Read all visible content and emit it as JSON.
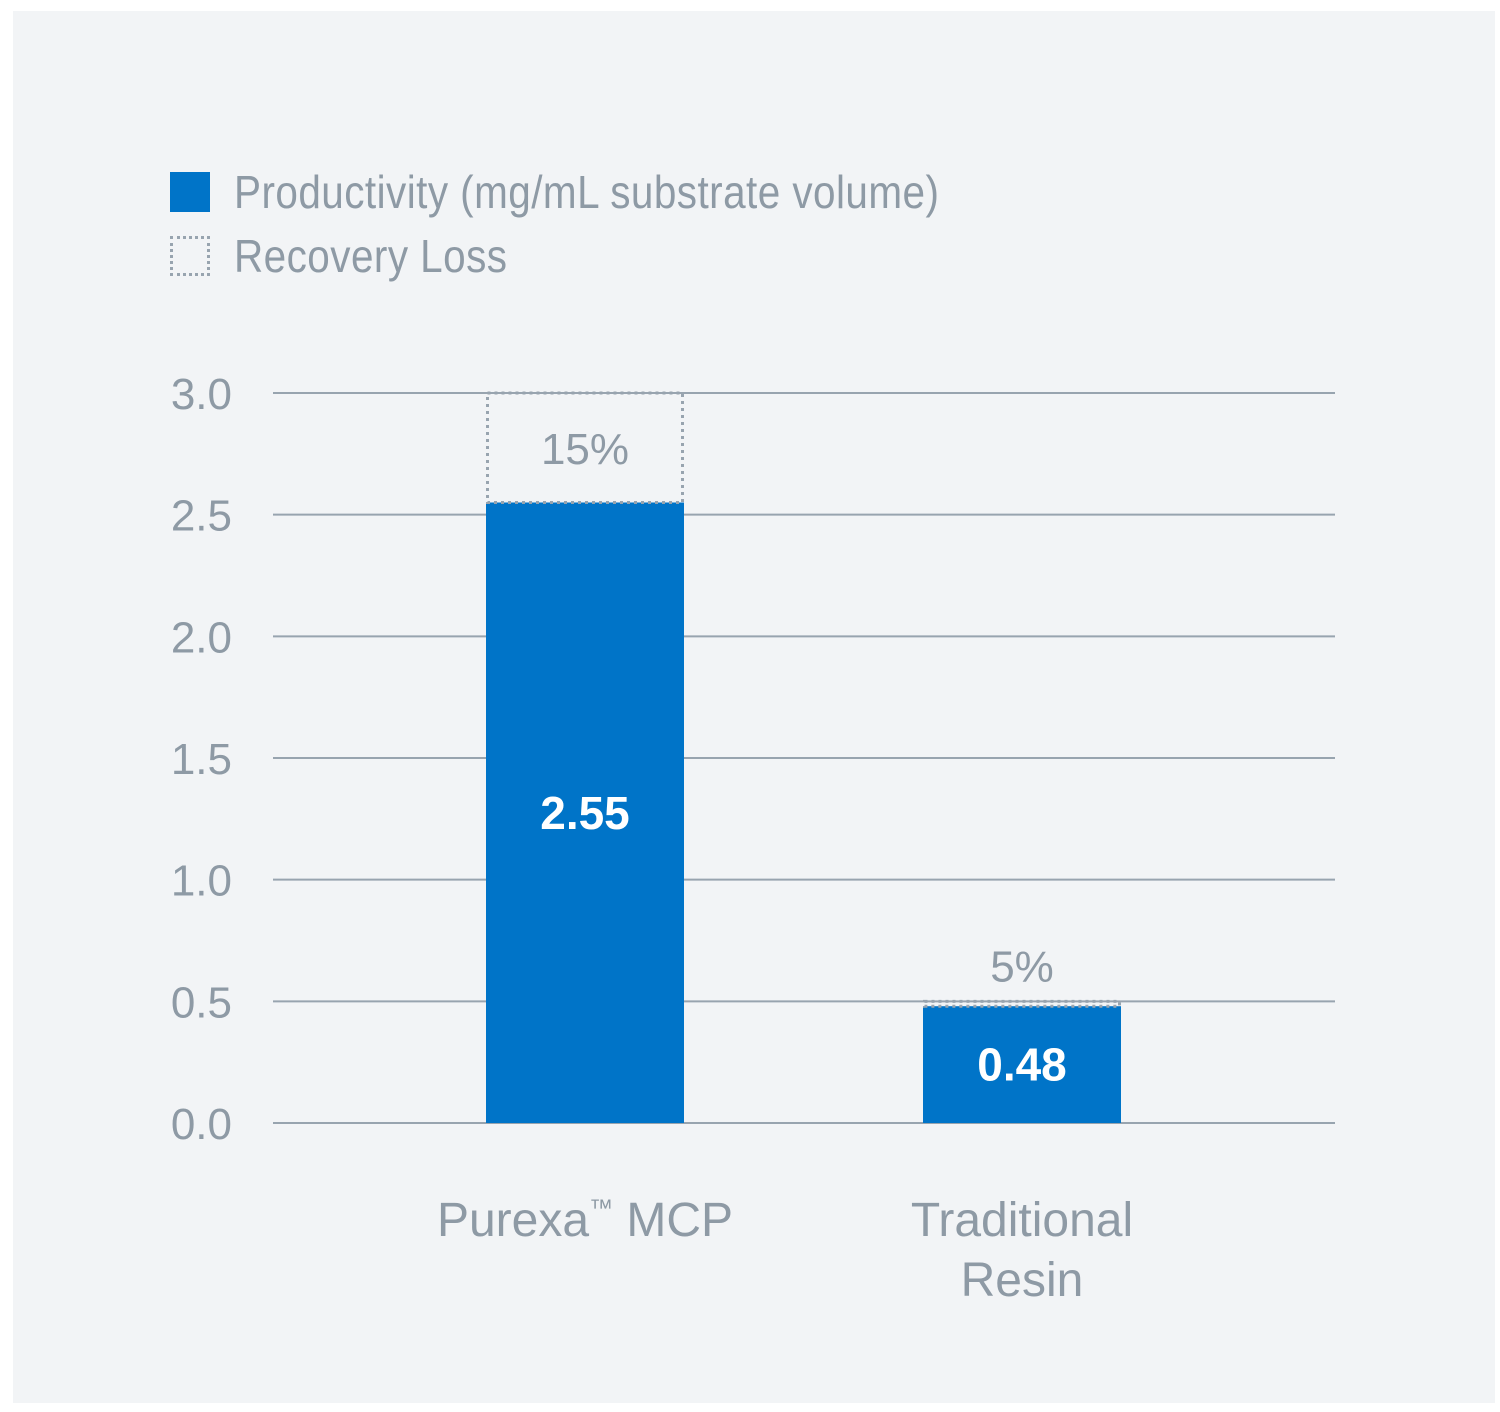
{
  "legend": {
    "items": [
      {
        "label": "Productivity (mg/mL substrate volume)",
        "style": "solid",
        "color": "#0074c8"
      },
      {
        "label": "Recovery Loss",
        "style": "dotted",
        "color": "#98a4af"
      }
    ]
  },
  "chart_data": {
    "type": "bar",
    "stacked": true,
    "ylim": [
      0,
      3.0
    ],
    "yticks": [
      "0.0",
      "0.5",
      "1.0",
      "1.5",
      "2.0",
      "2.5",
      "3.0"
    ],
    "grid": true,
    "legend_position": "top-left",
    "categories": [
      {
        "lines": [
          "Purexa",
          "MCP"
        ],
        "superscript": "™"
      },
      {
        "lines": [
          "Traditional",
          "Resin"
        ]
      }
    ],
    "series": [
      {
        "name": "Productivity (mg/mL substrate volume)",
        "values": [
          2.55,
          0.48
        ],
        "labels": [
          "2.55",
          "0.48"
        ],
        "color": "#0074c8"
      },
      {
        "name": "Recovery Loss",
        "values": [
          0.45,
          0.02
        ],
        "labels": [
          "15%",
          "5%"
        ],
        "color": "#98a4af"
      }
    ]
  }
}
